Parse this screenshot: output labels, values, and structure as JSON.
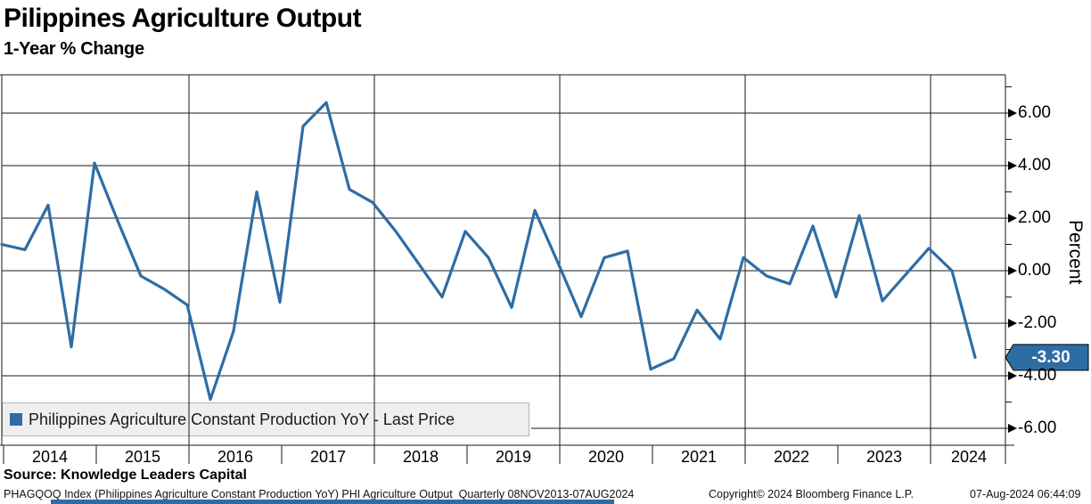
{
  "header": {
    "title": "Pilippines Agriculture Output",
    "subtitle": "1-Year % Change"
  },
  "legend": {
    "label": "Philippines Agriculture Constant Production YoY - Last Price",
    "marker_color": "#2E6DA4"
  },
  "last_price": {
    "value": "-3.30",
    "box_color": "#2E6DA4",
    "text_color": "#FFFFFF"
  },
  "y_axis": {
    "title": "Percent",
    "major_ticks": [
      "6.00",
      "4.00",
      "2.00",
      "0.00",
      "-2.00",
      "-4.00",
      "-6.00"
    ],
    "major_tick_values": [
      6,
      4,
      2,
      0,
      -2,
      -4,
      -6
    ],
    "minor_tick_values": [
      7,
      5,
      3,
      1,
      -1,
      -3,
      -5
    ]
  },
  "x_axis": {
    "year_labels": [
      "2014",
      "2015",
      "2016",
      "2017",
      "2018",
      "2019",
      "2020",
      "2021",
      "2022",
      "2023",
      "2024"
    ]
  },
  "footer": {
    "source": "Source: Knowledge Leaders Capital",
    "left": "PHAGQOQ Index (Philippines Agriculture Constant Production YoY) PHI Agriculture Output  Quarterly 08NOV2013-07AUG2024",
    "copyright": "Copyright© 2024 Bloomberg Finance L.P.",
    "timestamp": "07-Aug-2024 06:44:09"
  },
  "chart_data": {
    "type": "line",
    "title": "Pilippines Agriculture Output",
    "subtitle": "1-Year % Change",
    "series_name": "Philippines Agriculture Constant Production YoY - Last Price",
    "ylabel": "Percent",
    "ylim": [
      -6.6,
      7.4
    ],
    "y_major_ticks": [
      6,
      4,
      2,
      0,
      -2,
      -4,
      -6
    ],
    "grid": "horizontal every 2 units, vertical every 2 years",
    "legend_position": "bottom-left",
    "line_color": "#2E6DA4",
    "last_value_label": "-3.30",
    "x": [
      "2013 Q4",
      "2014 Q1",
      "2014 Q2",
      "2014 Q3",
      "2014 Q4",
      "2015 Q1",
      "2015 Q2",
      "2015 Q3",
      "2015 Q4",
      "2016 Q1",
      "2016 Q2",
      "2016 Q3",
      "2016 Q4",
      "2017 Q1",
      "2017 Q2",
      "2017 Q3",
      "2017 Q4",
      "2018 Q1",
      "2018 Q2",
      "2018 Q3",
      "2018 Q4",
      "2019 Q1",
      "2019 Q2",
      "2019 Q3",
      "2019 Q4",
      "2020 Q1",
      "2020 Q2",
      "2020 Q3",
      "2020 Q4",
      "2021 Q1",
      "2021 Q2",
      "2021 Q3",
      "2021 Q4",
      "2022 Q1",
      "2022 Q2",
      "2022 Q3",
      "2022 Q4",
      "2023 Q1",
      "2023 Q2",
      "2023 Q3",
      "2023 Q4",
      "2024 Q1",
      "2024 Q2"
    ],
    "values": [
      1.0,
      0.8,
      2.5,
      -2.9,
      4.1,
      1.9,
      -0.2,
      -0.7,
      -1.3,
      -4.9,
      -2.3,
      3.0,
      -1.2,
      5.5,
      6.4,
      3.1,
      2.6,
      1.5,
      0.25,
      -1.0,
      1.5,
      0.5,
      -1.4,
      2.3,
      0.3,
      -1.75,
      0.5,
      0.75,
      -3.75,
      -3.35,
      -1.5,
      -2.6,
      0.5,
      -0.2,
      -0.5,
      1.7,
      -1.0,
      2.1,
      -1.15,
      -0.15,
      0.85,
      0.0,
      -3.3
    ]
  }
}
